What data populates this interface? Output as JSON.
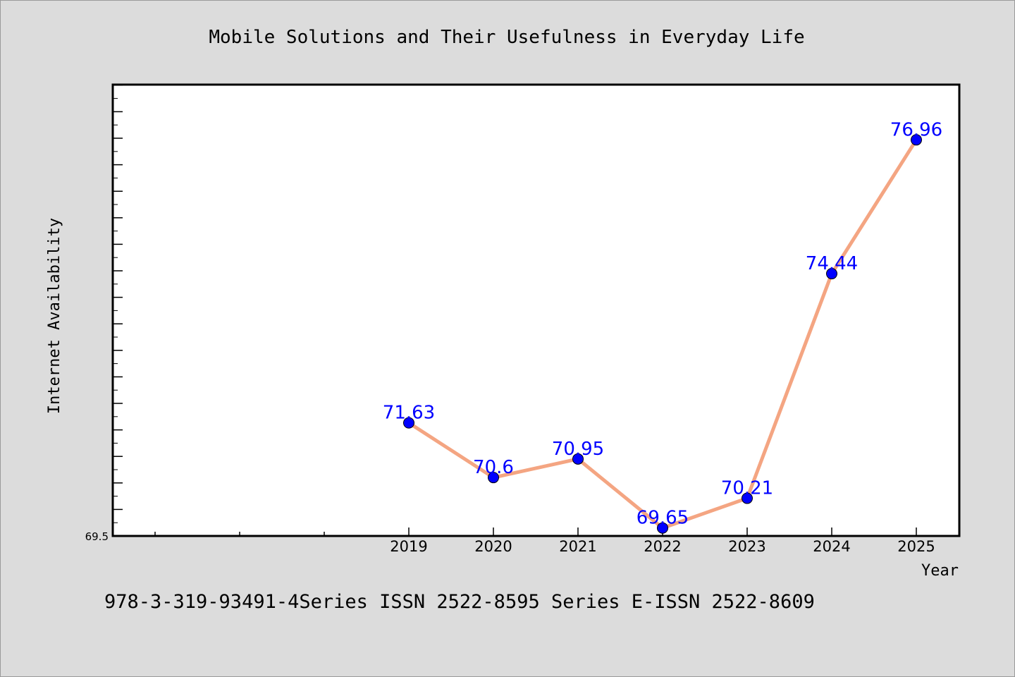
{
  "chart_data": {
    "type": "line",
    "title": "Mobile Solutions and Their Usefulness in Everyday Life",
    "xlabel": "Year",
    "ylabel": "Internet Availability",
    "categories": [
      "2019",
      "2020",
      "2021",
      "2022",
      "2023",
      "2024",
      "2025"
    ],
    "series": [
      {
        "values": [
          71.63,
          70.6,
          70.95,
          69.65,
          70.21,
          74.44,
          76.96
        ],
        "value_labels": [
          "71.63",
          "70.6",
          "70.95",
          "69.65",
          "70.21",
          "74.44",
          "76.96"
        ],
        "line_color": "#f4a582",
        "marker_color": "#0000ff",
        "label_color": "#0000ff"
      }
    ],
    "ytick_labels": [
      "69.5"
    ],
    "ylim": [
      69.5,
      78.0
    ],
    "grid": false,
    "legend": "none"
  },
  "footer": {
    "text": "978-3-319-93491-4Series ISSN 2522-8595 Series E-ISSN 2522-8609"
  },
  "colors": {
    "background": "#dcdcdc",
    "plot_background": "#ffffff"
  }
}
